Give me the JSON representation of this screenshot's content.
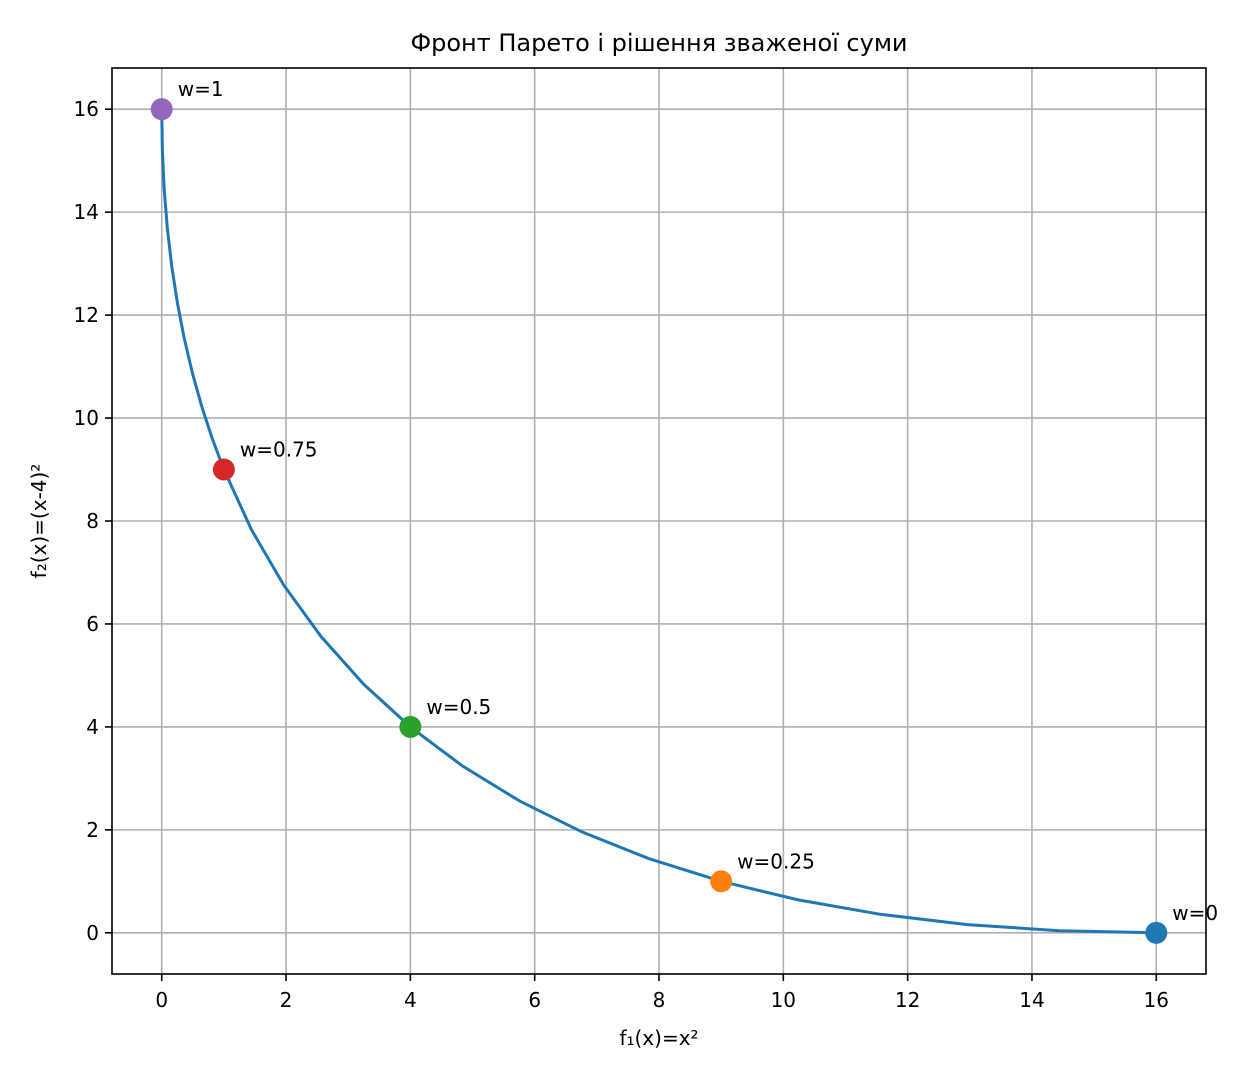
{
  "chart_data": {
    "type": "line",
    "title": "Фронт Парето і рішення зваженої суми",
    "xlabel": "f₁(x)=x²",
    "ylabel": "f₂(x)=(x-4)²",
    "xlim": [
      -0.8,
      16.8
    ],
    "ylim": [
      -0.8,
      16.8
    ],
    "xticks": [
      0,
      2,
      4,
      6,
      8,
      10,
      12,
      14,
      16
    ],
    "yticks": [
      0,
      2,
      4,
      6,
      8,
      10,
      12,
      14,
      16
    ],
    "grid": true,
    "series": [
      {
        "color": "#1f77b4",
        "x": [
          0,
          0.01,
          0.04,
          0.09,
          0.16,
          0.25,
          0.36,
          0.49,
          0.64,
          0.81,
          1.0,
          1.44,
          1.96,
          2.56,
          3.24,
          4.0,
          4.84,
          5.76,
          6.76,
          7.84,
          9.0,
          10.24,
          11.56,
          12.96,
          14.44,
          16.0
        ],
        "y": [
          16.0,
          15.21,
          14.44,
          13.69,
          12.96,
          12.25,
          11.56,
          10.89,
          10.24,
          9.61,
          9.0,
          7.84,
          6.76,
          5.76,
          4.84,
          4.0,
          3.24,
          2.56,
          1.96,
          1.44,
          1.0,
          0.64,
          0.36,
          0.16,
          0.04,
          0.0
        ]
      }
    ],
    "points": [
      {
        "x": 16,
        "y": 0,
        "label": "w=0",
        "color": "#1f77b4"
      },
      {
        "x": 9,
        "y": 1,
        "label": "w=0.25",
        "color": "#ff7f0e"
      },
      {
        "x": 4,
        "y": 4,
        "label": "w=0.5",
        "color": "#2ca02c"
      },
      {
        "x": 1,
        "y": 9,
        "label": "w=0.75",
        "color": "#d62728"
      },
      {
        "x": 0,
        "y": 16,
        "label": "w=1",
        "color": "#9467bd"
      }
    ]
  }
}
